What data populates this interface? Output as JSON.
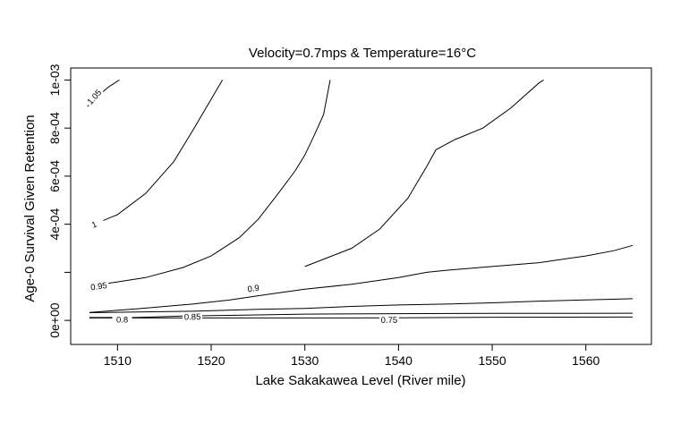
{
  "chart_data": {
    "type": "contour",
    "title": "Velocity=0.7mps & Temperature=16°C",
    "xlabel": "Lake Sakakawea Level (River mile)",
    "ylabel": "Age-0 Survival Given Retention",
    "xlim": [
      1505,
      1567
    ],
    "ylim": [
      -0.0001,
      0.00105
    ],
    "xticks": [
      1510,
      1520,
      1530,
      1540,
      1550,
      1560
    ],
    "xtick_labels": [
      "1510",
      "1520",
      "1530",
      "1540",
      "1550",
      "1560"
    ],
    "yticks": [
      0,
      0.0002,
      0.0004,
      0.0006,
      0.0008,
      0.001
    ],
    "ytick_labels": [
      "0e+00",
      "",
      "4e-04",
      "6e-04",
      "8e-04",
      "1e-03"
    ],
    "grid": false,
    "contours": [
      {
        "level": "0.75",
        "label_at": [
          1539,
          3e-06
        ],
        "points": [
          [
            1507,
            1e-05
          ],
          [
            1520,
            1e-05
          ],
          [
            1530,
            1e-05
          ],
          [
            1540,
            1.1e-05
          ],
          [
            1550,
            1.3e-05
          ],
          [
            1565,
            1.4e-05
          ]
        ]
      },
      {
        "level": "0.8",
        "label_at": [
          1510.5,
          4e-06
        ],
        "points": [
          [
            1507,
            1.2e-05
          ],
          [
            1512,
            1.2e-05
          ],
          [
            1517,
            1.8e-05
          ],
          [
            1522,
            2.1e-05
          ],
          [
            1530,
            2.6e-05
          ],
          [
            1540,
            2.8e-05
          ],
          [
            1550,
            2.9e-05
          ],
          [
            1565,
            3e-05
          ]
        ]
      },
      {
        "level": "0.85",
        "label_at": [
          1518,
          1.6e-05
        ],
        "points": [
          [
            1507,
            3.2e-05
          ],
          [
            1512,
            3.5e-05
          ],
          [
            1518,
            3.8e-05
          ],
          [
            1525,
            4.6e-05
          ],
          [
            1530,
            5e-05
          ],
          [
            1535,
            5.8e-05
          ],
          [
            1540,
            6.4e-05
          ],
          [
            1545,
            6.8e-05
          ],
          [
            1550,
            7.3e-05
          ],
          [
            1555,
            8e-05
          ],
          [
            1560,
            8.5e-05
          ],
          [
            1565,
            9e-05
          ]
        ]
      },
      {
        "level": "0.9",
        "label_at": [
          1524.5,
          0.000134
        ],
        "points": [
          [
            1507,
            3.3e-05
          ],
          [
            1512,
            4.8e-05
          ],
          [
            1518,
            6.8e-05
          ],
          [
            1522,
            8.5e-05
          ],
          [
            1526,
            0.000108
          ],
          [
            1530,
            0.00013
          ],
          [
            1535,
            0.00015
          ],
          [
            1540,
            0.000178
          ],
          [
            1543,
            0.0002
          ],
          [
            1545,
            0.000208
          ],
          [
            1550,
            0.000224
          ],
          [
            1555,
            0.00024
          ],
          [
            1560,
            0.000268
          ],
          [
            1563,
            0.00029
          ],
          [
            1565,
            0.000312
          ]
        ]
      },
      {
        "level": "0.95",
        "label_at": [
          1508,
          0.000143
        ],
        "points": [
          [
            1507,
            0.000143
          ],
          [
            1510,
            0.00016
          ],
          [
            1513,
            0.000178
          ],
          [
            1517,
            0.00022
          ],
          [
            1520,
            0.000268
          ],
          [
            1523,
            0.000344
          ],
          [
            1525,
            0.00042
          ],
          [
            1527,
            0.00052
          ],
          [
            1529,
            0.000624
          ],
          [
            1530,
            0.000688
          ],
          [
            1531,
            0.00077
          ],
          [
            1532,
            0.000856
          ],
          [
            1532.7,
            0.001
          ]
        ]
      },
      {
        "level": "1",
        "label_at": [
          1507.5,
          0.0004
        ],
        "points": [
          [
            1507.5,
            0.0004
          ],
          [
            1510,
            0.00044
          ],
          [
            1513,
            0.000528
          ],
          [
            1516,
            0.00066
          ],
          [
            1518,
            0.000788
          ],
          [
            1520,
            0.00092
          ],
          [
            1521.2,
            0.001
          ]
        ]
      },
      {
        "level": "0.9",
        "label_at": null,
        "points": [
          [
            1530,
            0.000224
          ],
          [
            1535,
            0.0003
          ],
          [
            1538,
            0.00038
          ],
          [
            1541,
            0.000508
          ],
          [
            1543,
            0.00064
          ],
          [
            1544,
            0.00071
          ],
          [
            1546,
            0.000752
          ],
          [
            1549,
            0.0008
          ],
          [
            1552,
            0.000884
          ],
          [
            1555,
            0.000988
          ],
          [
            1555.5,
            0.001
          ]
        ]
      },
      {
        "level": "1.05",
        "label_at": [
          1507.5,
          0.00093
        ],
        "points": [
          [
            1506.8,
            0.00089
          ],
          [
            1507.5,
            0.00092
          ],
          [
            1509,
            0.00097
          ],
          [
            1510.2,
            0.001
          ]
        ]
      }
    ]
  }
}
